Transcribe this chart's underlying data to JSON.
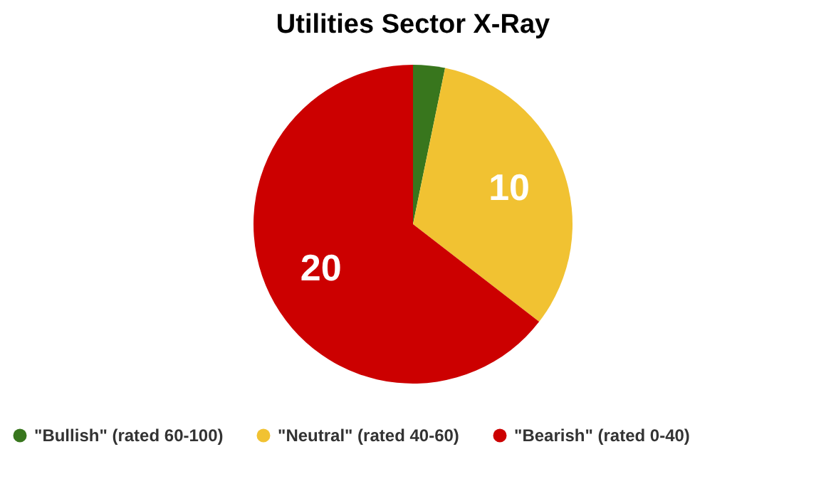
{
  "chart_data": {
    "type": "pie",
    "title": "Utilities Sector X-Ray",
    "categories": [
      "\"Bullish\" (rated 60-100)",
      "\"Neutral\" (rated 40-60)",
      "\"Bearish\" (rated 0-40)"
    ],
    "values": [
      1,
      10,
      20
    ],
    "colors": [
      "#38761d",
      "#f1c232",
      "#cc0000"
    ],
    "value_labels": [
      null,
      "10",
      "20"
    ],
    "legend": "bottom"
  }
}
